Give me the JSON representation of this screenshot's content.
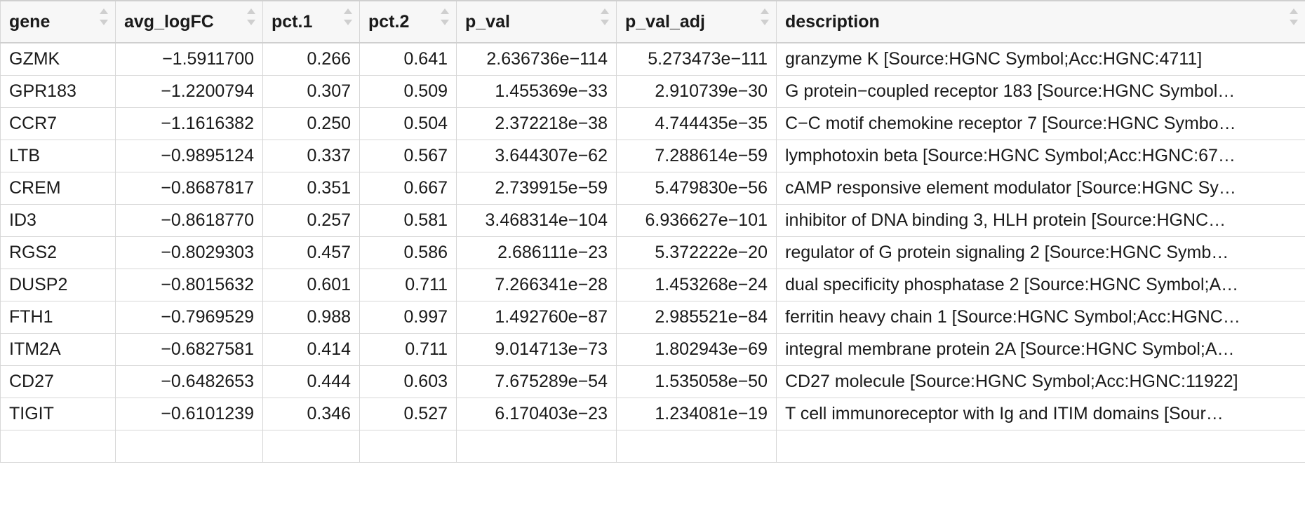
{
  "table": {
    "columns": [
      {
        "key": "gene",
        "label": "gene",
        "align": "left"
      },
      {
        "key": "avg_logFC",
        "label": "avg_logFC",
        "align": "right"
      },
      {
        "key": "pct1",
        "label": "pct.1",
        "align": "right"
      },
      {
        "key": "pct2",
        "label": "pct.2",
        "align": "right"
      },
      {
        "key": "p_val",
        "label": "p_val",
        "align": "right"
      },
      {
        "key": "p_val_adj",
        "label": "p_val_adj",
        "align": "right"
      },
      {
        "key": "description",
        "label": "description",
        "align": "left"
      }
    ],
    "rows": [
      [
        "GZMK",
        "−1.5911700",
        "0.266",
        "0.641",
        "2.636736e−114",
        "5.273473e−111",
        "granzyme K [Source:HGNC Symbol;Acc:HGNC:4711]"
      ],
      [
        "GPR183",
        "−1.2200794",
        "0.307",
        "0.509",
        "1.455369e−33",
        "2.910739e−30",
        "G protein−coupled receptor 183 [Source:HGNC Symbol…"
      ],
      [
        "CCR7",
        "−1.1616382",
        "0.250",
        "0.504",
        "2.372218e−38",
        "4.744435e−35",
        "C−C motif chemokine receptor 7 [Source:HGNC Symbo…"
      ],
      [
        "LTB",
        "−0.9895124",
        "0.337",
        "0.567",
        "3.644307e−62",
        "7.288614e−59",
        "lymphotoxin beta [Source:HGNC Symbol;Acc:HGNC:67…"
      ],
      [
        "CREM",
        "−0.8687817",
        "0.351",
        "0.667",
        "2.739915e−59",
        "5.479830e−56",
        "cAMP responsive element modulator [Source:HGNC Sy…"
      ],
      [
        "ID3",
        "−0.8618770",
        "0.257",
        "0.581",
        "3.468314e−104",
        "6.936627e−101",
        "inhibitor of DNA binding 3, HLH protein [Source:HGNC…"
      ],
      [
        "RGS2",
        "−0.8029303",
        "0.457",
        "0.586",
        "2.686111e−23",
        "5.372222e−20",
        "regulator of G protein signaling 2 [Source:HGNC Symb…"
      ],
      [
        "DUSP2",
        "−0.8015632",
        "0.601",
        "0.711",
        "7.266341e−28",
        "1.453268e−24",
        "dual specificity phosphatase 2 [Source:HGNC Symbol;A…"
      ],
      [
        "FTH1",
        "−0.7969529",
        "0.988",
        "0.997",
        "1.492760e−87",
        "2.985521e−84",
        "ferritin heavy chain 1 [Source:HGNC Symbol;Acc:HGNC…"
      ],
      [
        "ITM2A",
        "−0.6827581",
        "0.414",
        "0.711",
        "9.014713e−73",
        "1.802943e−69",
        "integral membrane protein 2A [Source:HGNC Symbol;A…"
      ],
      [
        "CD27",
        "−0.6482653",
        "0.444",
        "0.603",
        "7.675289e−54",
        "1.535058e−50",
        "CD27 molecule [Source:HGNC Symbol;Acc:HGNC:11922]"
      ],
      [
        "TIGIT",
        "−0.6101239",
        "0.346",
        "0.527",
        "6.170403e−23",
        "1.234081e−19",
        "T cell immunoreceptor with Ig and ITIM domains [Sour…"
      ],
      [
        "",
        "",
        "",
        "",
        "",
        "",
        ""
      ]
    ]
  }
}
